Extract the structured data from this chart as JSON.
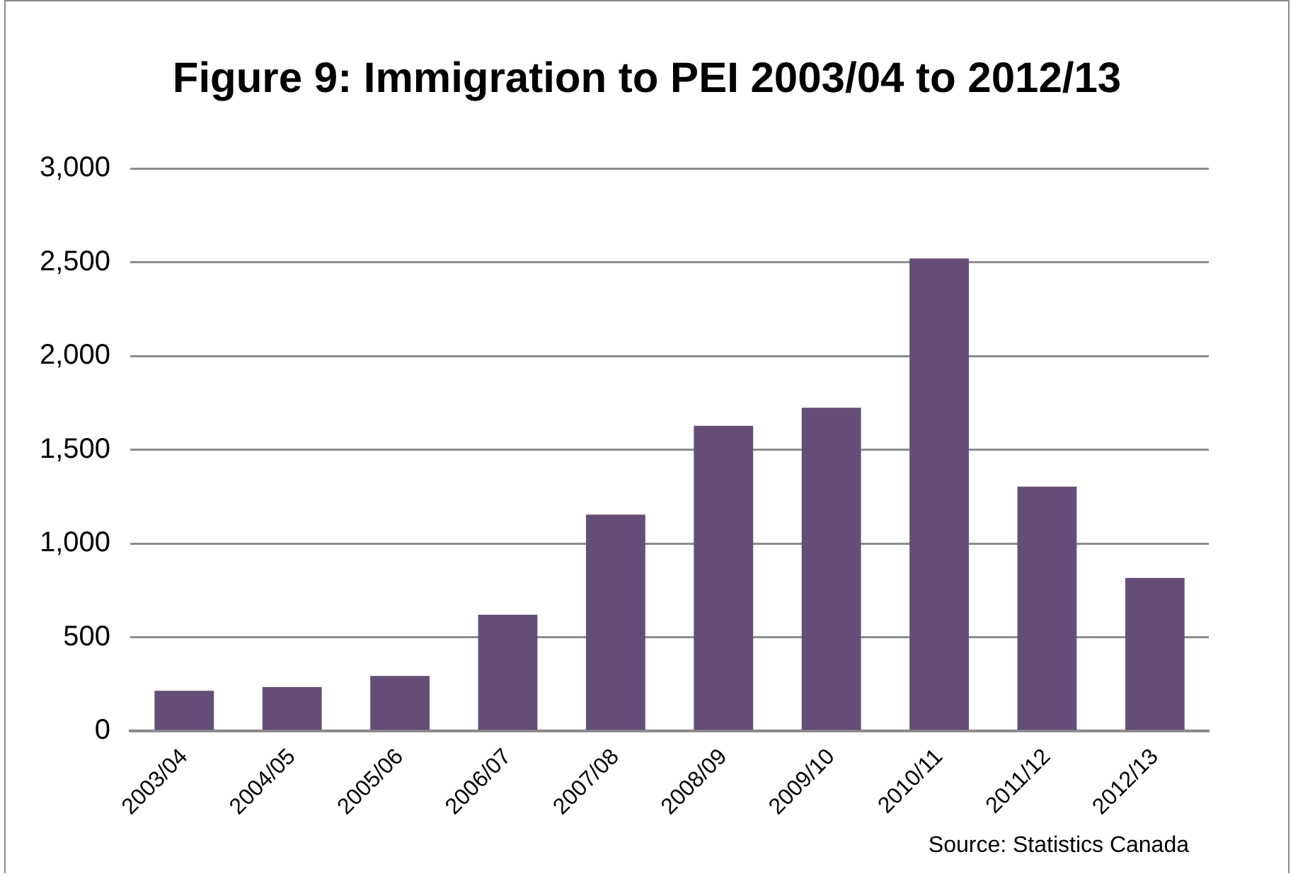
{
  "chart_data": {
    "type": "bar",
    "title": "Figure 9: Immigration to PEI 2003/04 to 2012/13",
    "categories": [
      "2003/04",
      "2004/05",
      "2005/06",
      "2006/07",
      "2007/08",
      "2008/09",
      "2009/10",
      "2010/11",
      "2011/12",
      "2012/13"
    ],
    "values": [
      214,
      234,
      294,
      620,
      1154,
      1627,
      1724,
      2520,
      1303,
      816
    ],
    "color": "#644e77",
    "ylim": [
      0,
      3000
    ],
    "yticks": [
      {
        "value": 0,
        "label": "0"
      },
      {
        "value": 500,
        "label": "500"
      },
      {
        "value": 1000,
        "label": "1,000"
      },
      {
        "value": 1500,
        "label": "1,500"
      },
      {
        "value": 2000,
        "label": "2,000"
      },
      {
        "value": 2500,
        "label": "2,500"
      },
      {
        "value": 3000,
        "label": "3,000"
      }
    ],
    "grid": "y",
    "legend": false,
    "annotations": [
      "Source: Statistics Canada"
    ]
  }
}
